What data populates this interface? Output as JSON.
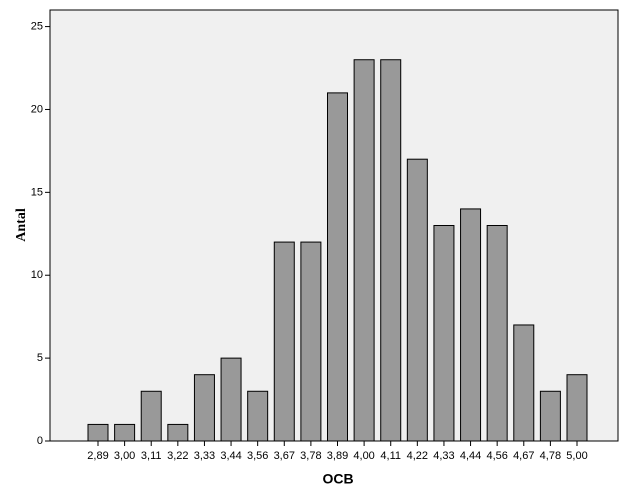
{
  "chart_data": {
    "type": "bar",
    "x_label": "OCB",
    "y_label": "Antal",
    "categories": [
      "2,89",
      "3,00",
      "3,11",
      "3,22",
      "3,33",
      "3,44",
      "3,56",
      "3,67",
      "3,78",
      "3,89",
      "4,00",
      "4,11",
      "4,22",
      "4,33",
      "4,44",
      "4,56",
      "4,67",
      "4,78",
      "5,00"
    ],
    "values": [
      1,
      1,
      3,
      1,
      4,
      5,
      3,
      12,
      12,
      21,
      23,
      23,
      17,
      13,
      14,
      13,
      7,
      3,
      4
    ],
    "color": "#999999",
    "ylim": [
      0,
      26
    ],
    "yticks": [
      0,
      5,
      10,
      15,
      20,
      25
    ],
    "grid": false
  }
}
